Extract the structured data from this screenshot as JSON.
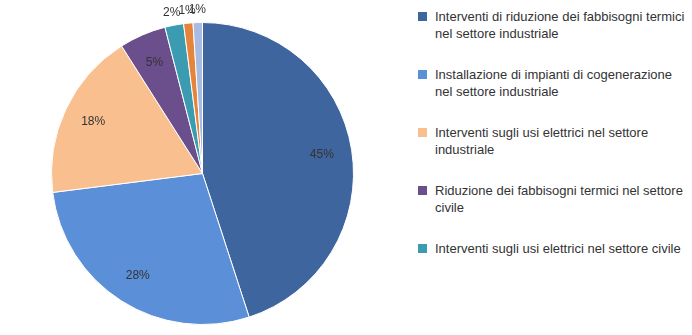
{
  "chart_data": {
    "type": "pie",
    "categories": [
      "Interventi di riduzione dei fabbisogni termici nel settore industriale",
      "Installazione di impianti di cogenerazione nel settore industriale",
      "Interventi sugli usi elettrici nel settore industriale",
      "Riduzione dei fabbisogni termici nel settore civile",
      "Interventi sugli usi elettrici nel settore civile",
      null,
      null
    ],
    "values": [
      45,
      28,
      18,
      5,
      2,
      1,
      1
    ],
    "value_labels": [
      "45%",
      "28%",
      "18%",
      "5%",
      "2%",
      "1%",
      "1%"
    ],
    "colors": [
      "#3f659e",
      "#5b8fd8",
      "#f9bf8e",
      "#6a4f8c",
      "#3b9bb1",
      "#e5853b",
      "#a9bbe0"
    ],
    "data_labels": true,
    "legend": "right"
  }
}
